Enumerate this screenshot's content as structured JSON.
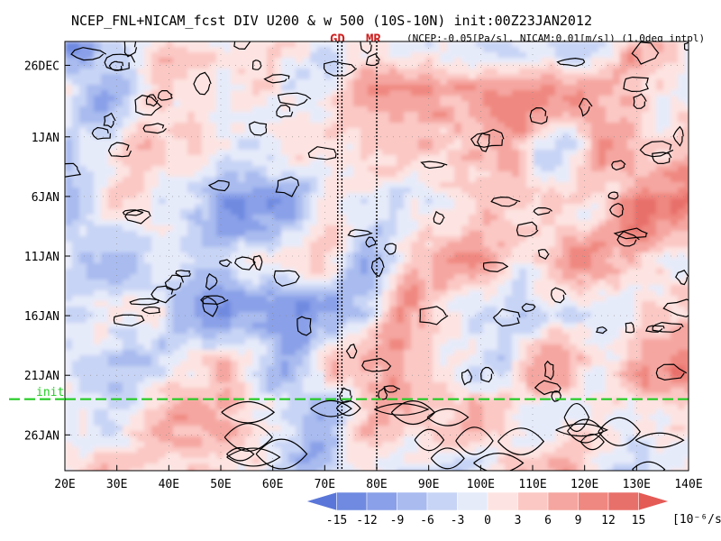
{
  "chart_data": {
    "type": "heatmap",
    "title": "NCEP_FNL+NICAM_fcst DIV U200 & w 500 (10S-10N) init:00Z23JAN2012",
    "subtitle": "(NCEP:-0.05[Pa/s], NICAM:0.01[m/s]) (1.0deg intpl)",
    "x_axis": {
      "ticks": [
        "20E",
        "30E",
        "40E",
        "50E",
        "60E",
        "70E",
        "80E",
        "90E",
        "100E",
        "110E",
        "120E",
        "130E",
        "140E"
      ],
      "range": [
        20,
        140
      ],
      "units": "deg E"
    },
    "y_axis": {
      "ticks": [
        "26DEC",
        "1JAN",
        "6JAN",
        "11JAN",
        "16JAN",
        "21JAN",
        "26JAN"
      ],
      "range": [
        "2011-12-24",
        "2012-01-29"
      ],
      "inverted": "time increases downward"
    },
    "reference_lines": [
      {
        "label": "GD",
        "x": 72.5,
        "style": "dotted"
      },
      {
        "label": "GD",
        "x": 73.3,
        "style": "dotted"
      },
      {
        "label": "MR",
        "x": 80,
        "style": "dotted"
      }
    ],
    "init_line": {
      "label": "init",
      "date": "2012-01-23",
      "color": "#22cc22",
      "style": "dashed"
    },
    "colorbar": {
      "levels": [
        "-15",
        "-12",
        "-9",
        "-6",
        "-3",
        "0",
        "3",
        "6",
        "9",
        "12",
        "15"
      ],
      "units": "[10⁻⁶/s]",
      "colors": [
        "#5a76d8",
        "#6f8ae0",
        "#8aa0e8",
        "#a9bbef",
        "#c8d4f5",
        "#e6ebfa",
        "#fde4e2",
        "#fbc8c4",
        "#f5a6a0",
        "#ef8880",
        "#e8706a",
        "#e45a55"
      ]
    },
    "grid": true,
    "contours": "w 500 (black lines)"
  },
  "labels": {
    "title": "NCEP_FNL+NICAM_fcst DIV U200 & w 500 (10S-10N) init:00Z23JAN2012",
    "marker_gd": "GD",
    "marker_mr": "MR",
    "subtitle": "(NCEP:-0.05[Pa/s], NICAM:0.01[m/s]) (1.0deg intpl)",
    "init": "init",
    "units": "[10⁻⁶/s]"
  }
}
